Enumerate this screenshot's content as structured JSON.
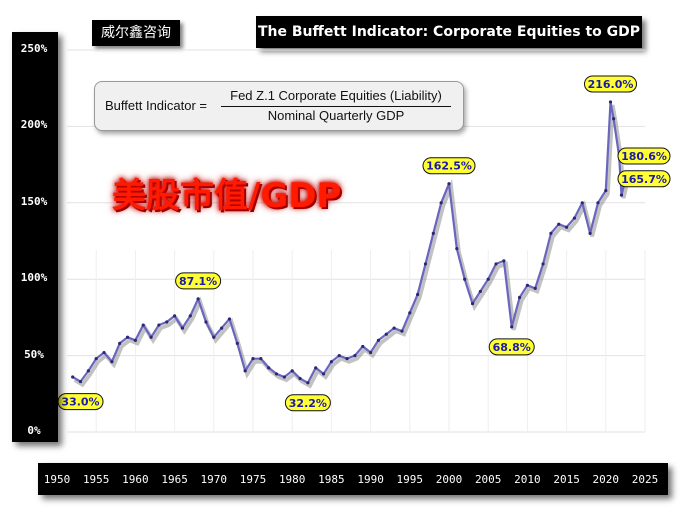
{
  "brand": "威尔鑫咨询",
  "header": {
    "title": "The Buffett Indicator: Corporate Equities to GDP"
  },
  "formula": {
    "lhs": "Buffett Indicator =",
    "numerator": "Fed Z.1 Corporate Equities (Liability)",
    "denominator": "Nominal Quarterly GDP"
  },
  "overlay_title": "美股市值/GDP",
  "colors": {
    "line": "#6a66c0",
    "annotation_fill": "#ffff33",
    "annotation_text": "#1a1aa6",
    "overlay": "#ff1a00"
  },
  "chart_data": {
    "type": "line",
    "title": "The Buffett Indicator: Corporate Equities to GDP",
    "ylim": [
      0,
      250
    ],
    "xlim": [
      1950,
      2025
    ],
    "grid": true,
    "y_ticks": [
      "0%",
      "50%",
      "100%",
      "150%",
      "200%",
      "250%"
    ],
    "x_ticks": [
      "1950",
      "1955",
      "1960",
      "1965",
      "1970",
      "1975",
      "1980",
      "1985",
      "1990",
      "1995",
      "2000",
      "2005",
      "2010",
      "2015",
      "2020",
      "2025"
    ],
    "series": [
      {
        "x": [
          1952,
          1953,
          1954,
          1955,
          1956,
          1957,
          1958,
          1959,
          1960,
          1961,
          1962,
          1963,
          1964,
          1965,
          1966,
          1967,
          1968,
          1969,
          1970,
          1971,
          1972,
          1973,
          1974,
          1975,
          1976,
          1977,
          1978,
          1979,
          1980,
          1981,
          1982,
          1983,
          1984,
          1985,
          1986,
          1987,
          1988,
          1989,
          1990,
          1991,
          1992,
          1993,
          1994,
          1995,
          1996,
          1997,
          1998,
          1999,
          2000,
          2001,
          2002,
          2003,
          2004,
          2005,
          2006,
          2007,
          2008,
          2009,
          2010,
          2011,
          2012,
          2013,
          2014,
          2015,
          2016,
          2017,
          2018,
          2019,
          2020,
          2020.6,
          2021,
          2021.7,
          2022,
          2022.5
        ],
        "y": [
          36,
          33,
          40,
          48,
          52,
          46,
          58,
          62,
          60,
          70,
          62,
          70,
          72,
          76,
          68,
          76,
          87.1,
          72,
          62,
          68,
          74,
          58,
          40,
          48,
          48,
          42,
          38,
          36,
          40,
          35,
          32.2,
          42,
          38,
          46,
          50,
          48,
          50,
          56,
          52,
          60,
          64,
          68,
          66,
          78,
          90,
          110,
          130,
          150,
          162.5,
          120,
          100,
          84,
          92,
          100,
          110,
          112,
          68.8,
          88,
          96,
          94,
          110,
          130,
          136,
          134,
          140,
          150,
          130,
          150,
          158,
          216,
          205,
          180.6,
          155,
          165.7
        ]
      }
    ],
    "annotations": [
      {
        "label": "33.0%",
        "x": 1953,
        "y": 33.0,
        "placement": "below"
      },
      {
        "label": "87.1%",
        "x": 1968,
        "y": 87.1,
        "placement": "above"
      },
      {
        "label": "32.2%",
        "x": 1982,
        "y": 32.2,
        "placement": "below"
      },
      {
        "label": "162.5%",
        "x": 2000,
        "y": 162.5,
        "placement": "above"
      },
      {
        "label": "68.8%",
        "x": 2008,
        "y": 68.8,
        "placement": "below"
      },
      {
        "label": "216.0%",
        "x": 2020.6,
        "y": 216.0,
        "placement": "above"
      },
      {
        "label": "180.6%",
        "x": 2021.7,
        "y": 180.6,
        "placement": "right"
      },
      {
        "label": "165.7%",
        "x": 2022.5,
        "y": 165.7,
        "placement": "right"
      }
    ]
  }
}
